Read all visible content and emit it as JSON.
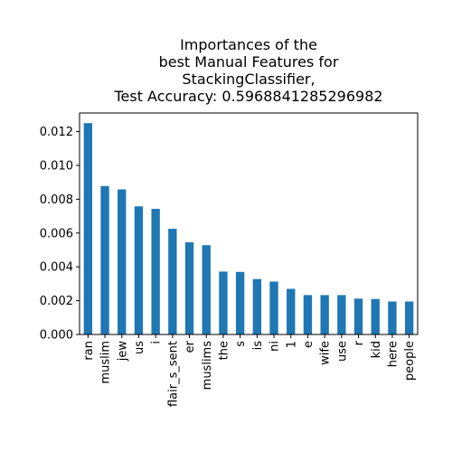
{
  "chart_data": {
    "type": "bar",
    "title": [
      "Importances of the",
      "best Manual Features for",
      "StackingClassifier,",
      "Test Accuracy: 0.5968841285296982"
    ],
    "xlabel": "",
    "ylabel": "",
    "categories": [
      "ran",
      "muslim",
      "jew",
      "us",
      "i",
      "flair_s_sent",
      "er",
      "muslims",
      "the",
      "s",
      "is",
      "ni",
      "1",
      "e",
      "wife",
      "use",
      "r",
      "kid",
      "here",
      "people"
    ],
    "values": [
      0.0125,
      0.00878,
      0.00858,
      0.00758,
      0.00743,
      0.00625,
      0.00545,
      0.00528,
      0.00372,
      0.0037,
      0.00328,
      0.00313,
      0.0027,
      0.00233,
      0.00233,
      0.00233,
      0.00212,
      0.0021,
      0.00195,
      0.00195
    ],
    "ylim": [
      0,
      0.0131
    ],
    "yticks": [
      "0.000",
      "0.002",
      "0.004",
      "0.006",
      "0.008",
      "0.010",
      "0.012"
    ],
    "grid": false,
    "legend": "none",
    "bar_color": "#1f77b4"
  }
}
